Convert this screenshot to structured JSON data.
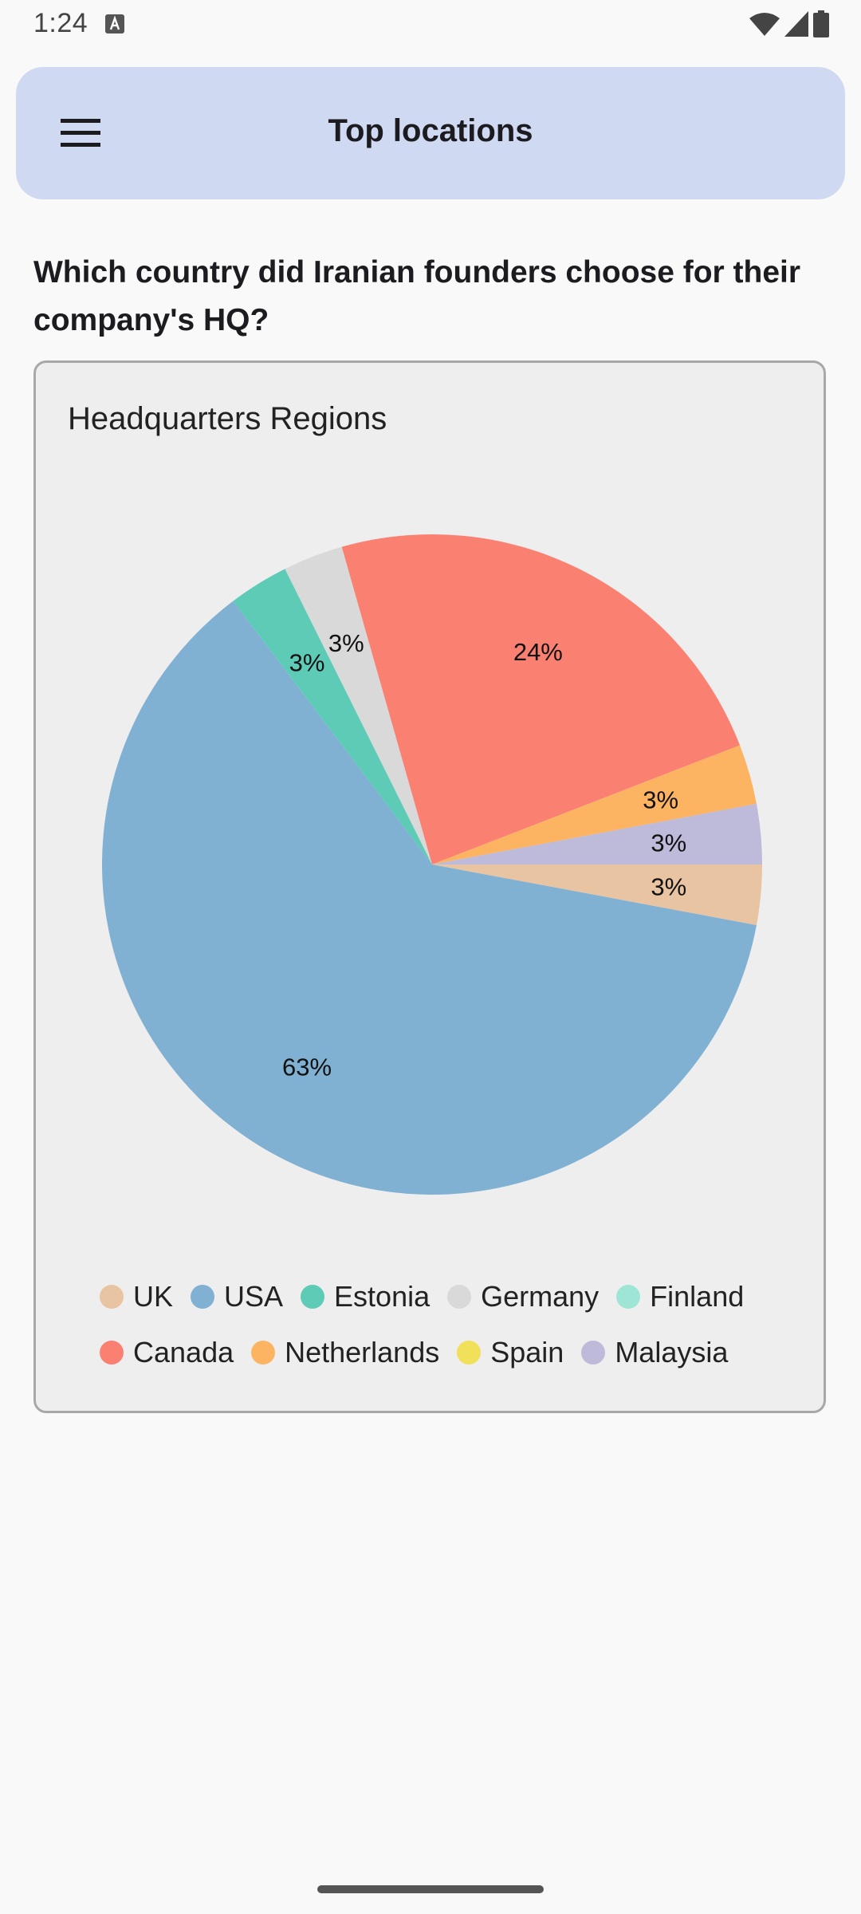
{
  "status_bar": {
    "time": "1:24"
  },
  "app_bar": {
    "title": "Top locations",
    "menu_icon": "hamburger-menu-icon"
  },
  "question": "Which country did Iranian founders choose for their company's HQ?",
  "card": {
    "title": "Headquarters Regions"
  },
  "chart_data": {
    "type": "pie",
    "title": "Headquarters Regions",
    "slices": [
      {
        "name": "UK",
        "value": 3,
        "label": "3%",
        "color": "#e8c4a2"
      },
      {
        "name": "USA",
        "value": 63,
        "label": "63%",
        "color": "#80b1d3"
      },
      {
        "name": "Estonia",
        "value": 3,
        "label": "3%",
        "color": "#5ecbb6"
      },
      {
        "name": "Germany",
        "value": 3,
        "label": "3%",
        "color": "#d9d9d9"
      },
      {
        "name": "Finland",
        "value": 0,
        "label": "",
        "color": "#9ee5d6"
      },
      {
        "name": "Canada",
        "value": 24,
        "label": "24%",
        "color": "#fa8072"
      },
      {
        "name": "Netherlands",
        "value": 3,
        "label": "3%",
        "color": "#fdb462"
      },
      {
        "name": "Spain",
        "value": 0,
        "label": "",
        "color": "#f0e05a"
      },
      {
        "name": "Malaysia",
        "value": 3,
        "label": "3%",
        "color": "#bebada"
      }
    ],
    "start": "east",
    "direction": "clockwise",
    "legend_position": "bottom"
  }
}
